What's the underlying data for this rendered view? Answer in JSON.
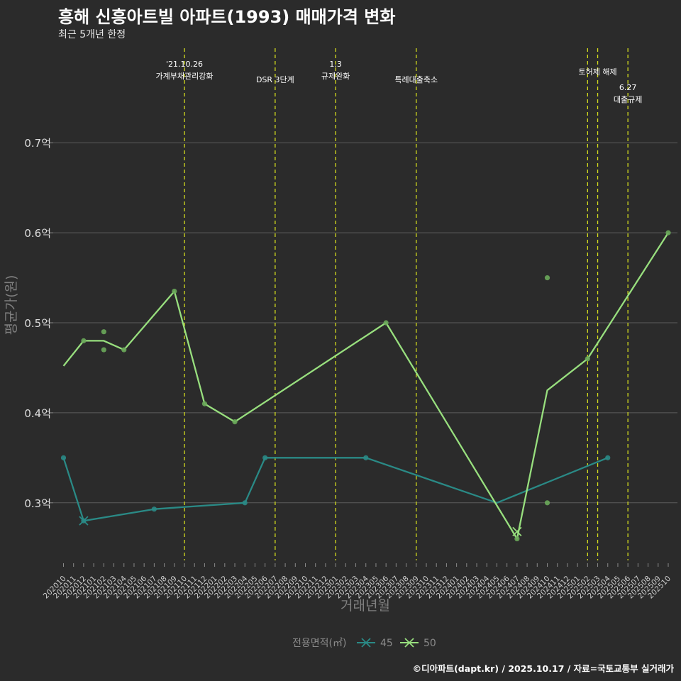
{
  "header": {
    "title": "흥해 신흥아트빌 아파트(1993) 매매가격 변화",
    "subtitle": "최근 5개년 한정"
  },
  "footer": {
    "caption": "©디아파트(dapt.kr) / 2025.10.17 / 자료=국토교통부 실거래가"
  },
  "colors": {
    "background": "#2b2b2b",
    "grid": "#5c5c5c",
    "series_45": "#2a8a86",
    "series_50": "#98df7e",
    "points_50": "#6aa85a",
    "event_line": "#d4dd1d"
  },
  "chart_data": {
    "type": "line",
    "title": "흥해 신흥아트빌 아파트(1993) 매매가격 변화",
    "xlabel": "거래년월",
    "ylabel": "평균가(원)",
    "ylim": [
      0.236,
      0.805
    ],
    "yticks": [
      0.3,
      0.4,
      0.5,
      0.6,
      0.7
    ],
    "ytick_labels": [
      "0.3억",
      "0.4억",
      "0.5억",
      "0.6억",
      "0.7억"
    ],
    "categories": [
      "202010",
      "202011",
      "202012",
      "202101",
      "202102",
      "202103",
      "202104",
      "202105",
      "202106",
      "202107",
      "202108",
      "202109",
      "202110",
      "202111",
      "202112",
      "202201",
      "202202",
      "202203",
      "202204",
      "202205",
      "202206",
      "202207",
      "202208",
      "202209",
      "202210",
      "202211",
      "202212",
      "202301",
      "202302",
      "202303",
      "202304",
      "202305",
      "202306",
      "202307",
      "202308",
      "202309",
      "202310",
      "202311",
      "202312",
      "202401",
      "202402",
      "202403",
      "202404",
      "202405",
      "202406",
      "202407",
      "202408",
      "202409",
      "202410",
      "202411",
      "202412",
      "202501",
      "202502",
      "202503",
      "202504",
      "202505",
      "202506",
      "202507",
      "202508",
      "202509",
      "202510"
    ],
    "legend_title": "전용면적(㎡)",
    "legend_position": "bottom",
    "series": [
      {
        "name": "45",
        "color": "#2a8a86",
        "line": [
          {
            "x": "202010",
            "y": 0.35
          },
          {
            "x": "202012",
            "y": 0.28
          },
          {
            "x": "202107",
            "y": 0.293
          },
          {
            "x": "202204",
            "y": 0.3
          },
          {
            "x": "202206",
            "y": 0.35
          },
          {
            "x": "202304",
            "y": 0.35
          },
          {
            "x": "202405",
            "y": 0.3
          },
          {
            "x": "202504",
            "y": 0.35
          }
        ],
        "points": [
          {
            "x": "202010",
            "y": 0.35
          },
          {
            "x": "202012",
            "y": 0.28
          },
          {
            "x": "202107",
            "y": 0.293
          },
          {
            "x": "202204",
            "y": 0.3
          },
          {
            "x": "202206",
            "y": 0.35
          },
          {
            "x": "202304",
            "y": 0.35
          },
          {
            "x": "202504",
            "y": 0.35
          }
        ],
        "cross_markers": [
          {
            "x": "202012",
            "y": 0.28
          }
        ]
      },
      {
        "name": "50",
        "color": "#98df7e",
        "line": [
          {
            "x": "202010",
            "y": 0.452
          },
          {
            "x": "202012",
            "y": 0.48
          },
          {
            "x": "202102",
            "y": 0.48
          },
          {
            "x": "202104",
            "y": 0.47
          },
          {
            "x": "202109",
            "y": 0.535
          },
          {
            "x": "202112",
            "y": 0.41
          },
          {
            "x": "202203",
            "y": 0.39
          },
          {
            "x": "202306",
            "y": 0.5
          },
          {
            "x": "202407",
            "y": 0.26
          },
          {
            "x": "202410",
            "y": 0.425
          },
          {
            "x": "202502",
            "y": 0.46
          },
          {
            "x": "202510",
            "y": 0.6
          }
        ],
        "points": [
          {
            "x": "202012",
            "y": 0.48
          },
          {
            "x": "202102",
            "y": 0.49
          },
          {
            "x": "202102",
            "y": 0.47
          },
          {
            "x": "202104",
            "y": 0.47
          },
          {
            "x": "202109",
            "y": 0.535
          },
          {
            "x": "202112",
            "y": 0.41
          },
          {
            "x": "202203",
            "y": 0.39
          },
          {
            "x": "202306",
            "y": 0.5
          },
          {
            "x": "202407",
            "y": 0.26
          },
          {
            "x": "202410",
            "y": 0.55
          },
          {
            "x": "202410",
            "y": 0.3
          },
          {
            "x": "202502",
            "y": 0.46
          },
          {
            "x": "202510",
            "y": 0.6
          }
        ],
        "cross_markers": [
          {
            "x": "202407",
            "y": 0.268
          }
        ]
      }
    ],
    "events": [
      {
        "x": "202110",
        "label": [
          "'21.10.26",
          "가계부채관리강화"
        ],
        "row": 1
      },
      {
        "x": "202207",
        "label": [
          "DSR 3단계"
        ],
        "row": 2
      },
      {
        "x": "202301",
        "label": [
          "1.3",
          "규제완화"
        ],
        "row": 1
      },
      {
        "x": "202309",
        "label": [
          "특례대출축소"
        ],
        "row": 2
      },
      {
        "x": "202502",
        "label": [],
        "row": 0
      },
      {
        "x": "202503",
        "label": [
          "토허제 해제"
        ],
        "row": 1.5
      },
      {
        "x": "202506",
        "label": [
          "6.27",
          "대출규제"
        ],
        "row": 2.5
      }
    ]
  }
}
